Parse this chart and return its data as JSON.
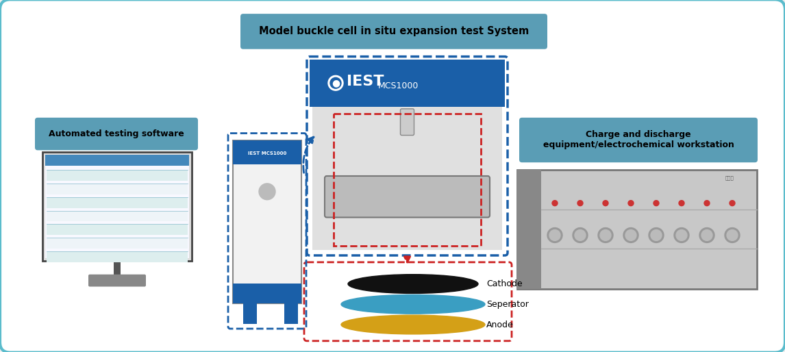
{
  "bg_color": "#f0f0f0",
  "white_bg": "#ffffff",
  "border_color": "#5bbccc",
  "title_box_text": "Model buckle cell in situ expansion test System",
  "title_box_color": "#5a9db5",
  "label_auto_text": "Automated testing software",
  "label_auto_color": "#5a9db5",
  "label_charge_text": "Charge and discharge\nequipment/electrochemical workstation",
  "label_charge_color": "#5a9db5",
  "cathode_color": "#111111",
  "separator_color": "#3a9ec2",
  "anode_color": "#d4a017",
  "cathode_label": "Cathode",
  "separator_label": "Seperator",
  "anode_label": "Anode",
  "blue_dark": "#1a5fa8",
  "blue_dashed": "#1a5fa8",
  "red_dashed": "#cc2222",
  "equip_gray": "#c0c0c0",
  "equip_dark": "#888888"
}
